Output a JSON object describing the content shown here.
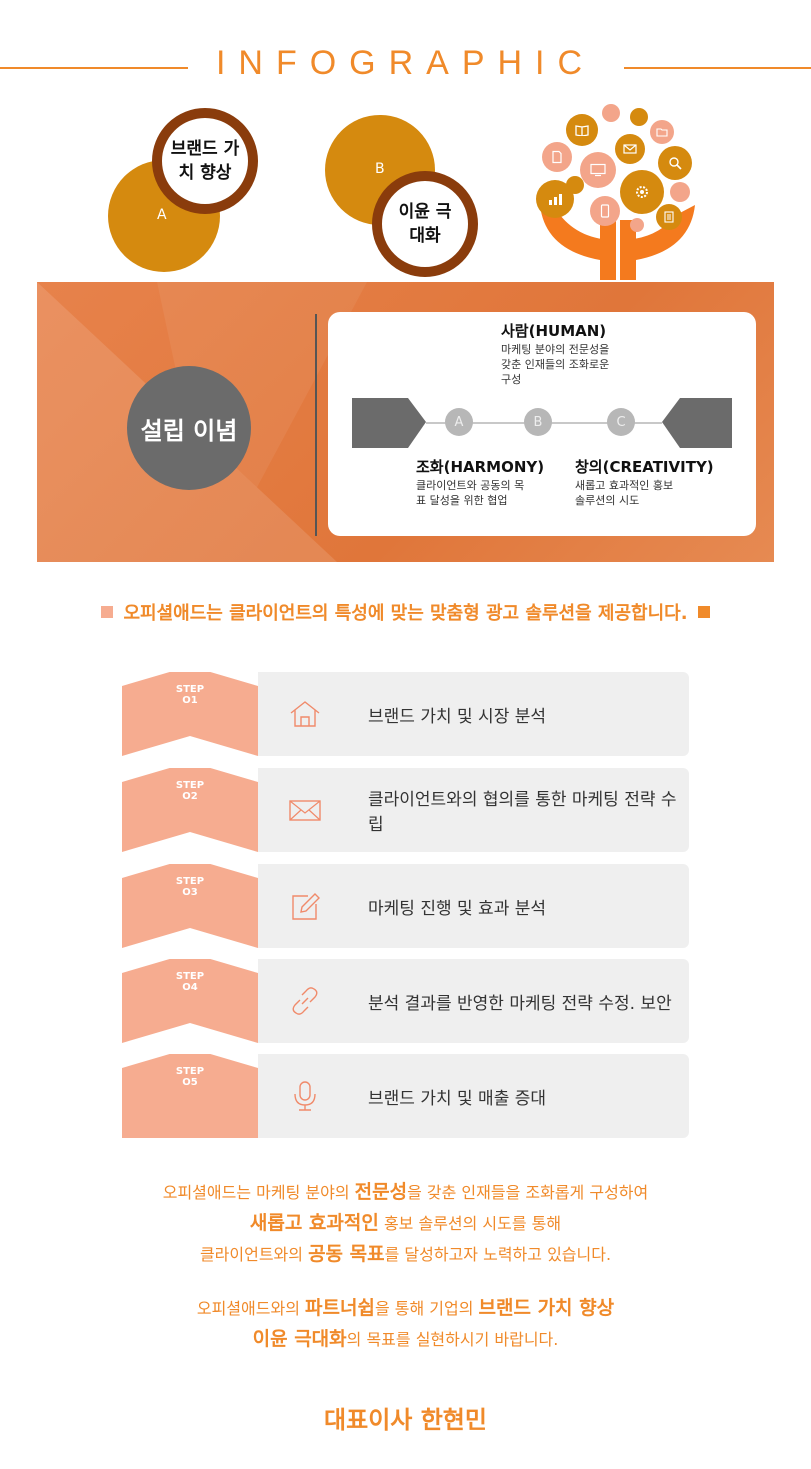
{
  "header": {
    "title": "INFOGRAPHIC"
  },
  "circles": {
    "a": {
      "letter": "A",
      "label": "브랜드 가치 향상"
    },
    "b": {
      "letter": "B",
      "label": "이윤 극대화"
    }
  },
  "tree_icons": [
    "book-icon",
    "mail-icon",
    "folder-icon",
    "document-icon",
    "monitor-icon",
    "search-icon",
    "chart-icon",
    "mobile-icon",
    "gear-icon",
    "list-icon"
  ],
  "philosophy": {
    "title": "설립 이념",
    "human": {
      "title": "사람(HUMAN)",
      "desc": "마케팅 분야의 전문성을 갖춘 인재들의 조화로운 구성"
    },
    "harmony": {
      "title": "조화(HARMONY)",
      "desc": "클라이언트와 공동의 목표 달성을 위한 협업"
    },
    "creativity": {
      "title": "창의(CREATIVITY)",
      "desc": "새롭고 효과적인 홍보 솔루션의 시도"
    },
    "nodes": [
      "A",
      "B",
      "C"
    ]
  },
  "slogan": "오피셜애드는 클라이언트의 특성에 맞는 맞춤형 광고 솔루션을 제공합니다.",
  "steps": [
    {
      "label": "STEP",
      "num": "O1",
      "icon": "home-icon",
      "text": "브랜드 가치 및 시장 분석"
    },
    {
      "label": "STEP",
      "num": "O2",
      "icon": "envelope-icon",
      "text": "클라이언트와의 협의를 통한 마케팅 전략 수립"
    },
    {
      "label": "STEP",
      "num": "O3",
      "icon": "edit-icon",
      "text": "마케팅 진행 및 효과 분석"
    },
    {
      "label": "STEP",
      "num": "O4",
      "icon": "link-icon",
      "text": "분석 결과를 반영한 마케팅 전략 수정. 보안"
    },
    {
      "label": "STEP",
      "num": "O5",
      "icon": "microphone-icon",
      "text": "브랜드 가치 및 매출 증대"
    }
  ],
  "message": {
    "p1": {
      "t1": "오피셜애드는 마케팅 분야의 ",
      "b1": "전문성",
      "t2": "을 갖춘 인재들을 조화롭게 구성하여",
      "b2": "새롭고 효과적인",
      "t3": " 홍보 솔루션의 시도를 통해",
      "t4": "클라이언트와의 ",
      "b3": "공동 목표",
      "t5": "를 달성하고자 노력하고 있습니다."
    },
    "p2": {
      "t1": "오피셜애드와의 ",
      "b1": "파트너쉽",
      "t2": "을 통해 기업의 ",
      "b2": "브랜드 가치 향상",
      "b3": "이윤 극대화",
      "t3": "의 목표를 실현하시기 바랍니다."
    }
  },
  "signature": "대표이사 한현민",
  "colors": {
    "accent": "#f08a2a",
    "banner": "#e07a40",
    "gold": "#d58a0f",
    "ring": "#8a3c0c",
    "step": "#f6ac90"
  }
}
